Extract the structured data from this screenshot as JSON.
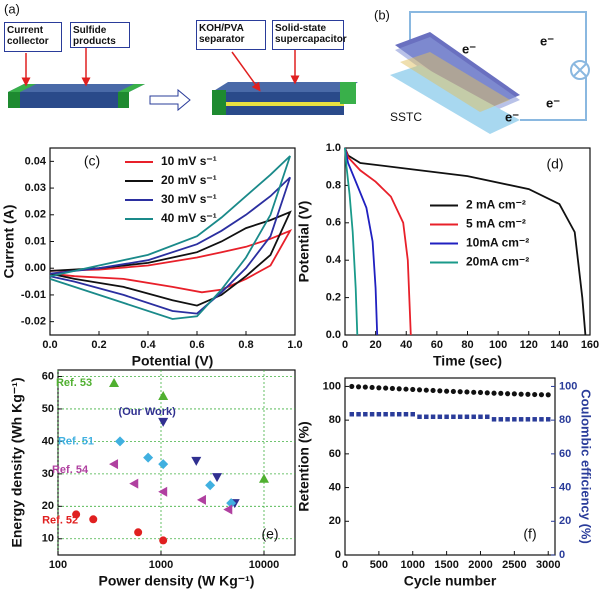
{
  "diagram": {
    "panel_a": {
      "label": "(a)",
      "boxes": [
        "Current collector",
        "Sulfide products",
        "KOH/PVA separator",
        "Solid-state supercapacitor"
      ]
    },
    "panel_b": {
      "label": "(b)",
      "electron_labels": [
        "e⁻",
        "e⁻",
        "e⁻",
        "e⁻"
      ],
      "device": "SSTC"
    }
  },
  "chart_data": [
    {
      "type": "line",
      "panel_label": "(c)",
      "xlabel": "Potential (V)",
      "ylabel": "Current (A)",
      "xlim": [
        0,
        1.0
      ],
      "xticks": [
        {
          "value": 0,
          "label": "0.0"
        },
        0.2,
        0.4,
        0.6,
        0.8,
        {
          "value": 1.0,
          "label": "1.0"
        }
      ],
      "ylim": [
        -0.025,
        0.045
      ],
      "yticks": [
        -0.02,
        -0.01,
        {
          "value": 0,
          "label": "0.00"
        },
        0.01,
        0.02,
        0.03,
        0.04
      ],
      "legend": "upper center",
      "series": [
        {
          "name": "10 mV s⁻¹",
          "color": "#e8202a",
          "x": [
            0,
            0.2,
            0.4,
            0.6,
            0.7,
            0.8,
            0.9,
            0.98,
            0.9,
            0.8,
            0.7,
            0.62,
            0.5,
            0.3,
            0.1,
            0
          ],
          "values": [
            -0.001,
            -0.0005,
            0.001,
            0.004,
            0.006,
            0.008,
            0.011,
            0.014,
            0.001,
            -0.004,
            -0.008,
            -0.009,
            -0.007,
            -0.004,
            -0.003,
            -0.002
          ]
        },
        {
          "name": "20 mV s⁻¹",
          "color": "#111111",
          "x": [
            0,
            0.2,
            0.4,
            0.6,
            0.7,
            0.8,
            0.9,
            0.98,
            0.9,
            0.8,
            0.7,
            0.6,
            0.5,
            0.3,
            0.1,
            0
          ],
          "values": [
            -0.001,
            0,
            0.002,
            0.006,
            0.01,
            0.015,
            0.018,
            0.021,
            0.005,
            -0.003,
            -0.01,
            -0.014,
            -0.012,
            -0.007,
            -0.004,
            -0.002
          ]
        },
        {
          "name": "30 mV s⁻¹",
          "color": "#2b2fa0",
          "x": [
            0,
            0.2,
            0.4,
            0.6,
            0.7,
            0.8,
            0.9,
            0.98,
            0.9,
            0.8,
            0.7,
            0.6,
            0.5,
            0.3,
            0.1,
            0
          ],
          "values": [
            -0.002,
            0,
            0.003,
            0.009,
            0.014,
            0.02,
            0.027,
            0.034,
            0.012,
            0,
            -0.009,
            -0.017,
            -0.016,
            -0.01,
            -0.005,
            -0.003
          ]
        },
        {
          "name": "40 mV s⁻¹",
          "color": "#1a8a8a",
          "x": [
            0,
            0.2,
            0.4,
            0.6,
            0.7,
            0.8,
            0.9,
            0.98,
            0.9,
            0.8,
            0.7,
            0.6,
            0.5,
            0.3,
            0.1,
            0
          ],
          "values": [
            -0.003,
            0.001,
            0.005,
            0.012,
            0.019,
            0.027,
            0.035,
            0.042,
            0.02,
            0.004,
            -0.008,
            -0.018,
            -0.019,
            -0.013,
            -0.007,
            -0.004
          ]
        }
      ]
    },
    {
      "type": "line",
      "panel_label": "(d)",
      "xlabel": "Time (sec)",
      "ylabel": "Potential (V)",
      "xlim": [
        0,
        160
      ],
      "xticks": [
        0,
        20,
        40,
        60,
        80,
        100,
        120,
        140,
        160
      ],
      "ylim": [
        0,
        1.0
      ],
      "yticks": [
        {
          "value": 0,
          "label": "0.0"
        },
        0.2,
        0.4,
        0.6,
        0.8,
        {
          "value": 1.0,
          "label": "1.0"
        }
      ],
      "legend": "center right",
      "series": [
        {
          "name": "2  mA cm⁻²",
          "color": "#111111",
          "x": [
            0,
            2,
            10,
            40,
            80,
            120,
            140,
            150,
            155,
            157
          ],
          "values": [
            1.0,
            0.96,
            0.92,
            0.89,
            0.85,
            0.78,
            0.7,
            0.55,
            0.2,
            0
          ]
        },
        {
          "name": "5  mA cm⁻²",
          "color": "#e8202a",
          "x": [
            0,
            2,
            10,
            20,
            30,
            38,
            41,
            42,
            43
          ],
          "values": [
            1.0,
            0.95,
            0.88,
            0.82,
            0.74,
            0.6,
            0.4,
            0.2,
            0
          ]
        },
        {
          "name": "10mA cm⁻²",
          "color": "#2020c0",
          "x": [
            0,
            2,
            8,
            14,
            18,
            20,
            21
          ],
          "values": [
            1.0,
            0.92,
            0.8,
            0.68,
            0.5,
            0.25,
            0
          ]
        },
        {
          "name": "20mA cm⁻²",
          "color": "#1a9a8a",
          "x": [
            0,
            1,
            3,
            5,
            7,
            8
          ],
          "values": [
            1.0,
            0.9,
            0.75,
            0.55,
            0.25,
            0
          ]
        }
      ]
    },
    {
      "type": "scatter",
      "panel_label": "(e)",
      "xlabel": "Power density (W Kg⁻¹)",
      "ylabel": "Energy density (Wh Kg⁻¹)",
      "xscale": "log",
      "xlim": [
        100,
        20000
      ],
      "xticks": [
        100,
        1000,
        10000
      ],
      "ylim": [
        5,
        62
      ],
      "yticks": [
        10,
        20,
        30,
        40,
        50,
        60
      ],
      "grid": true,
      "series": [
        {
          "name": "Ref. 53",
          "color": "#50b030",
          "marker": "triangle-up",
          "x": [
            350,
            1050,
            10000
          ],
          "values": [
            58,
            54,
            28.5
          ]
        },
        {
          "name": "(Our Work)",
          "color": "#303090",
          "marker": "triangle-down",
          "x": [
            1050,
            2200,
            3500,
            5200
          ],
          "values": [
            46,
            34,
            29,
            21
          ]
        },
        {
          "name": "Ref. 51",
          "color": "#40b0e0",
          "marker": "diamond",
          "x": [
            400,
            750,
            1050,
            3000,
            4800
          ],
          "values": [
            40,
            35,
            33,
            26.5,
            21
          ]
        },
        {
          "name": "Ref. 54",
          "color": "#b040a0",
          "marker": "triangle-left",
          "x": [
            350,
            550,
            1050,
            2500,
            4500
          ],
          "values": [
            33,
            27,
            24.5,
            22,
            19
          ]
        },
        {
          "name": "Ref. 52",
          "color": "#e02020",
          "marker": "circle",
          "x": [
            150,
            220,
            600,
            1050
          ],
          "values": [
            17.5,
            16,
            12,
            9.5
          ]
        }
      ]
    },
    {
      "type": "scatter",
      "panel_label": "(f)",
      "xlabel": "Cycle number",
      "ylabel": "Retention (%)",
      "y2label": "Coulombic efficiency (%)",
      "xlim": [
        0,
        3100
      ],
      "xticks": [
        0,
        500,
        1000,
        1500,
        2000,
        2500,
        3000
      ],
      "ylim": [
        0,
        105
      ],
      "yticks": [
        0,
        20,
        40,
        60,
        80,
        100
      ],
      "y2lim": [
        0,
        105
      ],
      "y2ticks": [
        0,
        20,
        40,
        60,
        80,
        100
      ],
      "y2color": "#2a3c9a",
      "series": [
        {
          "name": "Retention",
          "color": "#111111",
          "marker": "circle",
          "x": [
            100,
            200,
            300,
            400,
            500,
            600,
            700,
            800,
            900,
            1000,
            1100,
            1200,
            1300,
            1400,
            1500,
            1600,
            1700,
            1800,
            1900,
            2000,
            2100,
            2200,
            2300,
            2400,
            2500,
            2600,
            2700,
            2800,
            2900,
            3000
          ],
          "values": [
            100,
            99.8,
            99.6,
            99.4,
            99.2,
            99.0,
            98.8,
            98.6,
            98.4,
            98.2,
            98.0,
            97.8,
            97.6,
            97.4,
            97.2,
            97.0,
            96.9,
            96.7,
            96.5,
            96.4,
            96.2,
            96.0,
            95.9,
            95.7,
            95.6,
            95.4,
            95.3,
            95.2,
            95.1,
            95.0
          ]
        },
        {
          "name": "Coulombic efficiency",
          "color": "#2a3c9a",
          "marker": "square",
          "axis": "y2",
          "x": [
            100,
            200,
            300,
            400,
            500,
            600,
            700,
            800,
            900,
            1000,
            1100,
            1200,
            1300,
            1400,
            1500,
            1600,
            1700,
            1800,
            1900,
            2000,
            2100,
            2200,
            2300,
            2400,
            2500,
            2600,
            2700,
            2800,
            2900,
            3000
          ],
          "values": [
            83.5,
            83.5,
            83.5,
            83.5,
            83.5,
            83.5,
            83.5,
            83.5,
            83.5,
            83.5,
            82,
            82,
            82,
            82,
            82,
            82,
            82,
            82,
            82,
            82,
            82,
            80.5,
            80.5,
            80.5,
            80.5,
            80.5,
            80.5,
            80.5,
            80.5,
            80.5
          ]
        }
      ]
    }
  ]
}
